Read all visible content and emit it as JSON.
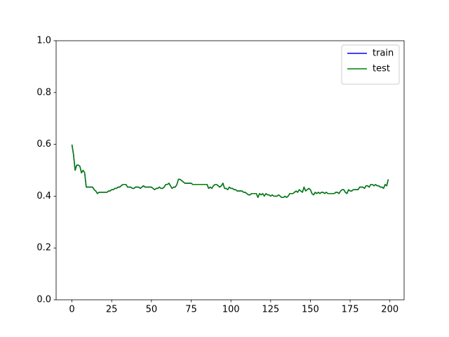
{
  "chart_data": {
    "type": "line",
    "x": [
      0,
      1,
      2,
      3,
      4,
      5,
      6,
      7,
      8,
      9,
      10,
      11,
      12,
      13,
      14,
      15,
      16,
      17,
      18,
      19,
      20,
      21,
      22,
      23,
      24,
      25,
      26,
      27,
      28,
      29,
      30,
      31,
      32,
      33,
      34,
      35,
      36,
      37,
      38,
      39,
      40,
      41,
      42,
      43,
      44,
      45,
      46,
      47,
      48,
      49,
      50,
      51,
      52,
      53,
      54,
      55,
      56,
      57,
      58,
      59,
      60,
      61,
      62,
      63,
      64,
      65,
      66,
      67,
      68,
      69,
      70,
      71,
      72,
      73,
      74,
      75,
      76,
      77,
      78,
      79,
      80,
      81,
      82,
      83,
      84,
      85,
      86,
      87,
      88,
      89,
      90,
      91,
      92,
      93,
      94,
      95,
      96,
      97,
      98,
      99,
      100,
      101,
      102,
      103,
      104,
      105,
      106,
      107,
      108,
      109,
      110,
      111,
      112,
      113,
      114,
      115,
      116,
      117,
      118,
      119,
      120,
      121,
      122,
      123,
      124,
      125,
      126,
      127,
      128,
      129,
      130,
      131,
      132,
      133,
      134,
      135,
      136,
      137,
      138,
      139,
      140,
      141,
      142,
      143,
      144,
      145,
      146,
      147,
      148,
      149,
      150,
      151,
      152,
      153,
      154,
      155,
      156,
      157,
      158,
      159,
      160,
      161,
      162,
      163,
      164,
      165,
      166,
      167,
      168,
      169,
      170,
      171,
      172,
      173,
      174,
      175,
      176,
      177,
      178,
      179,
      180,
      181,
      182,
      183,
      184,
      185,
      186,
      187,
      188,
      189,
      190,
      191,
      192,
      193,
      194,
      195,
      196,
      197,
      198,
      199
    ],
    "series": [
      {
        "name": "train",
        "color": "#0000ff",
        "values": [
          0.599,
          0.56,
          0.5,
          0.52,
          0.52,
          0.515,
          0.49,
          0.5,
          0.49,
          0.435,
          0.435,
          0.435,
          0.435,
          0.435,
          0.425,
          0.42,
          0.41,
          0.415,
          0.415,
          0.415,
          0.415,
          0.415,
          0.415,
          0.42,
          0.42,
          0.425,
          0.425,
          0.43,
          0.43,
          0.435,
          0.435,
          0.44,
          0.445,
          0.445,
          0.445,
          0.435,
          0.435,
          0.435,
          0.43,
          0.43,
          0.435,
          0.435,
          0.435,
          0.43,
          0.435,
          0.44,
          0.435,
          0.435,
          0.435,
          0.435,
          0.435,
          0.43,
          0.425,
          0.43,
          0.43,
          0.435,
          0.43,
          0.43,
          0.435,
          0.445,
          0.445,
          0.45,
          0.44,
          0.43,
          0.435,
          0.435,
          0.445,
          0.465,
          0.465,
          0.46,
          0.455,
          0.45,
          0.45,
          0.45,
          0.45,
          0.45,
          0.445,
          0.445,
          0.445,
          0.445,
          0.445,
          0.445,
          0.445,
          0.445,
          0.445,
          0.445,
          0.43,
          0.435,
          0.43,
          0.44,
          0.445,
          0.445,
          0.44,
          0.435,
          0.44,
          0.45,
          0.43,
          0.43,
          0.425,
          0.435,
          0.43,
          0.43,
          0.425,
          0.425,
          0.42,
          0.42,
          0.42,
          0.42,
          0.415,
          0.415,
          0.41,
          0.405,
          0.405,
          0.41,
          0.41,
          0.41,
          0.41,
          0.395,
          0.41,
          0.405,
          0.41,
          0.4,
          0.41,
          0.405,
          0.405,
          0.4,
          0.405,
          0.4,
          0.4,
          0.4,
          0.405,
          0.4,
          0.395,
          0.395,
          0.4,
          0.395,
          0.4,
          0.41,
          0.41,
          0.41,
          0.415,
          0.42,
          0.415,
          0.425,
          0.42,
          0.415,
          0.435,
          0.42,
          0.425,
          0.43,
          0.425,
          0.41,
          0.405,
          0.415,
          0.41,
          0.415,
          0.41,
          0.415,
          0.415,
          0.41,
          0.415,
          0.41,
          0.41,
          0.41,
          0.41,
          0.41,
          0.415,
          0.415,
          0.41,
          0.42,
          0.425,
          0.425,
          0.415,
          0.41,
          0.425,
          0.42,
          0.42,
          0.425,
          0.425,
          0.425,
          0.425,
          0.435,
          0.435,
          0.435,
          0.43,
          0.44,
          0.44,
          0.435,
          0.445,
          0.445,
          0.44,
          0.445,
          0.44,
          0.44,
          0.435,
          0.435,
          0.43,
          0.445,
          0.44,
          0.465
        ]
      },
      {
        "name": "test",
        "color": "#008000",
        "values": [
          0.599,
          0.56,
          0.5,
          0.52,
          0.52,
          0.515,
          0.49,
          0.5,
          0.49,
          0.435,
          0.435,
          0.435,
          0.435,
          0.435,
          0.425,
          0.42,
          0.41,
          0.415,
          0.415,
          0.415,
          0.415,
          0.415,
          0.415,
          0.42,
          0.42,
          0.425,
          0.425,
          0.43,
          0.43,
          0.435,
          0.435,
          0.44,
          0.445,
          0.445,
          0.445,
          0.435,
          0.435,
          0.435,
          0.43,
          0.43,
          0.435,
          0.435,
          0.435,
          0.43,
          0.435,
          0.44,
          0.435,
          0.435,
          0.435,
          0.435,
          0.435,
          0.43,
          0.425,
          0.43,
          0.43,
          0.435,
          0.43,
          0.43,
          0.435,
          0.445,
          0.445,
          0.45,
          0.44,
          0.43,
          0.435,
          0.435,
          0.445,
          0.465,
          0.465,
          0.46,
          0.455,
          0.45,
          0.45,
          0.45,
          0.45,
          0.45,
          0.445,
          0.445,
          0.445,
          0.445,
          0.445,
          0.445,
          0.445,
          0.445,
          0.445,
          0.445,
          0.43,
          0.435,
          0.43,
          0.44,
          0.445,
          0.445,
          0.44,
          0.435,
          0.44,
          0.45,
          0.43,
          0.43,
          0.425,
          0.435,
          0.43,
          0.43,
          0.425,
          0.425,
          0.42,
          0.42,
          0.42,
          0.42,
          0.415,
          0.415,
          0.41,
          0.405,
          0.405,
          0.41,
          0.41,
          0.41,
          0.41,
          0.395,
          0.41,
          0.405,
          0.41,
          0.4,
          0.41,
          0.405,
          0.405,
          0.4,
          0.405,
          0.4,
          0.4,
          0.4,
          0.405,
          0.4,
          0.395,
          0.395,
          0.4,
          0.395,
          0.4,
          0.41,
          0.41,
          0.41,
          0.415,
          0.42,
          0.415,
          0.425,
          0.42,
          0.415,
          0.435,
          0.42,
          0.425,
          0.43,
          0.425,
          0.41,
          0.405,
          0.415,
          0.41,
          0.415,
          0.41,
          0.415,
          0.415,
          0.41,
          0.415,
          0.41,
          0.41,
          0.41,
          0.41,
          0.41,
          0.415,
          0.415,
          0.41,
          0.42,
          0.425,
          0.425,
          0.415,
          0.41,
          0.425,
          0.42,
          0.42,
          0.425,
          0.425,
          0.425,
          0.425,
          0.435,
          0.435,
          0.435,
          0.43,
          0.44,
          0.44,
          0.435,
          0.445,
          0.445,
          0.44,
          0.445,
          0.44,
          0.44,
          0.435,
          0.435,
          0.43,
          0.445,
          0.44,
          0.465
        ]
      }
    ],
    "xlim": [
      -9.95,
      208.95
    ],
    "xticks": [
      0,
      25,
      50,
      75,
      100,
      125,
      150,
      175,
      200
    ],
    "ylim": [
      0,
      1
    ],
    "yticks": [
      {
        "value": 0,
        "label": "0.0"
      },
      0.2,
      0.4,
      0.6,
      0.8,
      {
        "value": 1,
        "label": "1.0"
      }
    ],
    "grid": false,
    "legend": "upper right"
  }
}
